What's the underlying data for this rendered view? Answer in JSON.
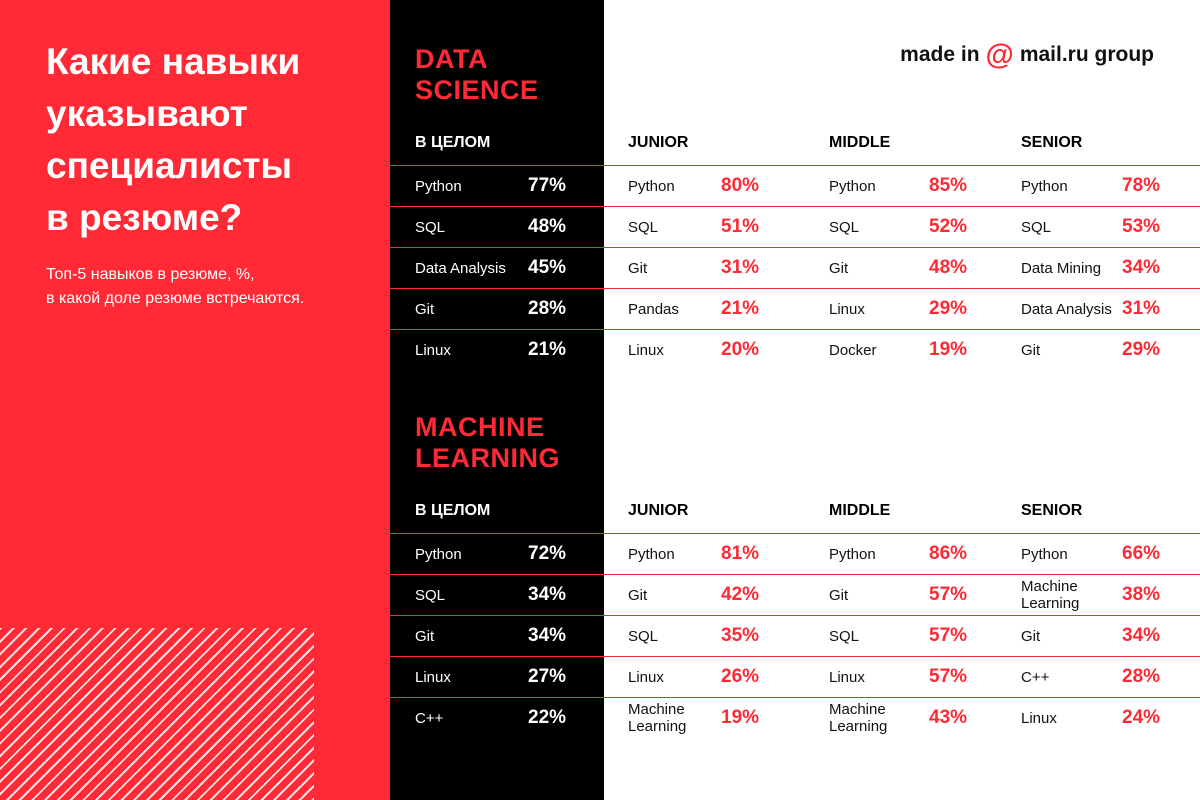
{
  "header": {
    "title": "Какие навыки\nуказывают\nспециалисты\nв резюме?",
    "subtitle": "Топ-5 навыков в резюме, %,\nв какой доле резюме встречаются.",
    "logo": {
      "prefix": "made in",
      "at": "@",
      "brand": "mail.ru group"
    }
  },
  "colors": {
    "red": "#ff2a36",
    "black": "#000000",
    "white": "#ffffff"
  },
  "chart_data": [
    {
      "type": "table",
      "title": "DATA\nSCIENCE",
      "columns": [
        {
          "name": "В ЦЕЛОМ",
          "rows": [
            {
              "skill": "Python",
              "value": 77,
              "label": "77%"
            },
            {
              "skill": "SQL",
              "value": 48,
              "label": "48%"
            },
            {
              "skill": "Data Analysis",
              "value": 45,
              "label": "45%"
            },
            {
              "skill": "Git",
              "value": 28,
              "label": "28%"
            },
            {
              "skill": "Linux",
              "value": 21,
              "label": "21%"
            }
          ]
        },
        {
          "name": "JUNIOR",
          "rows": [
            {
              "skill": "Python",
              "value": 80,
              "label": "80%"
            },
            {
              "skill": "SQL",
              "value": 51,
              "label": "51%"
            },
            {
              "skill": "Git",
              "value": 31,
              "label": "31%"
            },
            {
              "skill": "Pandas",
              "value": 21,
              "label": "21%"
            },
            {
              "skill": "Linux",
              "value": 20,
              "label": "20%"
            }
          ]
        },
        {
          "name": "MIDDLE",
          "rows": [
            {
              "skill": "Python",
              "value": 85,
              "label": "85%"
            },
            {
              "skill": "SQL",
              "value": 52,
              "label": "52%"
            },
            {
              "skill": "Git",
              "value": 48,
              "label": "48%"
            },
            {
              "skill": "Linux",
              "value": 29,
              "label": "29%"
            },
            {
              "skill": "Docker",
              "value": 19,
              "label": "19%"
            }
          ]
        },
        {
          "name": "SENIOR",
          "rows": [
            {
              "skill": "Python",
              "value": 78,
              "label": "78%"
            },
            {
              "skill": "SQL",
              "value": 53,
              "label": "53%"
            },
            {
              "skill": "Data Mining",
              "value": 34,
              "label": "34%"
            },
            {
              "skill": "Data Analysis",
              "value": 31,
              "label": "31%"
            },
            {
              "skill": "Git",
              "value": 29,
              "label": "29%"
            }
          ]
        }
      ]
    },
    {
      "type": "table",
      "title": "MACHINE\nLEARNING",
      "columns": [
        {
          "name": "В ЦЕЛОМ",
          "rows": [
            {
              "skill": "Python",
              "value": 72,
              "label": "72%"
            },
            {
              "skill": "SQL",
              "value": 34,
              "label": "34%"
            },
            {
              "skill": "Git",
              "value": 34,
              "label": "34%"
            },
            {
              "skill": "Linux",
              "value": 27,
              "label": "27%"
            },
            {
              "skill": "C++",
              "value": 22,
              "label": "22%"
            }
          ]
        },
        {
          "name": "JUNIOR",
          "rows": [
            {
              "skill": "Python",
              "value": 81,
              "label": "81%"
            },
            {
              "skill": "Git",
              "value": 42,
              "label": "42%"
            },
            {
              "skill": "SQL",
              "value": 35,
              "label": "35%"
            },
            {
              "skill": "Linux",
              "value": 26,
              "label": "26%"
            },
            {
              "skill": "Machine\nLearning",
              "value": 19,
              "label": "19%"
            }
          ]
        },
        {
          "name": "MIDDLE",
          "rows": [
            {
              "skill": "Python",
              "value": 86,
              "label": "86%"
            },
            {
              "skill": "Git",
              "value": 57,
              "label": "57%"
            },
            {
              "skill": "SQL",
              "value": 57,
              "label": "57%"
            },
            {
              "skill": "Linux",
              "value": 57,
              "label": "57%"
            },
            {
              "skill": "Machine\nLearning",
              "value": 43,
              "label": "43%"
            }
          ]
        },
        {
          "name": "SENIOR",
          "rows": [
            {
              "skill": "Python",
              "value": 66,
              "label": "66%"
            },
            {
              "skill": "Machine\nLearning",
              "value": 38,
              "label": "38%"
            },
            {
              "skill": "Git",
              "value": 34,
              "label": "34%"
            },
            {
              "skill": "C++",
              "value": 28,
              "label": "28%"
            },
            {
              "skill": "Linux",
              "value": 24,
              "label": "24%"
            }
          ]
        }
      ]
    }
  ]
}
